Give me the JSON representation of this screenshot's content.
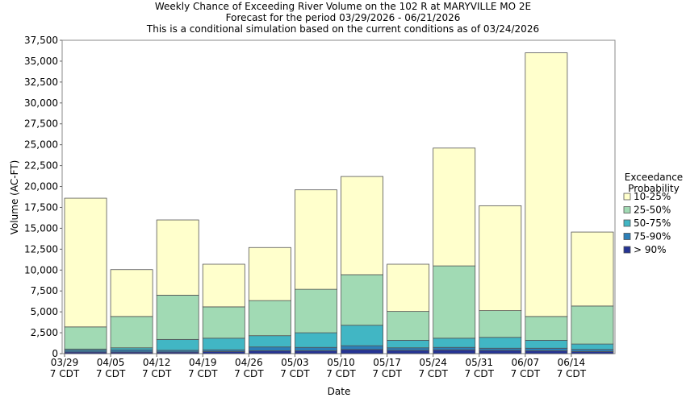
{
  "chart_data": {
    "type": "stacked_bar",
    "title": "Weekly Chance of Exceeding River Volume on the 102 R at MARYVILLE MO 2E",
    "subtitle": "Forecast for the period 03/29/2026 - 06/21/2026",
    "note": "This is a conditional simulation based on the current conditions as of 03/24/2026",
    "x_label": "Date",
    "y_label": "Volume (AC-FT)",
    "legend_title": "Exceedance Probability",
    "legend_position": "right",
    "categories": [
      "03/29 7 CDT",
      "04/05 7 CDT",
      "04/12 7 CDT",
      "04/19 7 CDT",
      "04/26 7 CDT",
      "05/03 7 CDT",
      "05/10 7 CDT",
      "05/17 7 CDT",
      "05/24 7 CDT",
      "05/31 7 CDT",
      "06/07 7 CDT",
      "06/14 7 CDT"
    ],
    "series": [
      {
        "name": "> 90%",
        "color": "#253494",
        "values": [
          200,
          200,
          200,
          250,
          350,
          350,
          500,
          400,
          450,
          400,
          350,
          250
        ]
      },
      {
        "name": "75-90%",
        "color": "#2c7fb8",
        "values": [
          200,
          250,
          200,
          200,
          450,
          400,
          450,
          300,
          300,
          250,
          300,
          250
        ]
      },
      {
        "name": "50-75%",
        "color": "#41b6c4",
        "values": [
          150,
          250,
          1300,
          1400,
          1350,
          1750,
          2450,
          900,
          1100,
          1300,
          950,
          650
        ]
      },
      {
        "name": "25-50%",
        "color": "#a1dab4",
        "values": [
          2650,
          3750,
          5300,
          3750,
          4200,
          5200,
          6050,
          3450,
          8650,
          3200,
          2850,
          4550
        ]
      },
      {
        "name": "10-25%",
        "color": "#ffffcc",
        "values": [
          15400,
          5600,
          9000,
          5100,
          6350,
          11900,
          11750,
          5650,
          14100,
          12550,
          31550,
          8850
        ]
      }
    ],
    "ylim": [
      0,
      37500
    ],
    "yticks": [
      0,
      {
        "value": 2500,
        "label": "2,500"
      },
      {
        "value": 5000,
        "label": "5,000"
      },
      {
        "value": 7500,
        "label": "7,500"
      },
      {
        "value": 10000,
        "label": "10,000"
      },
      {
        "value": 12500,
        "label": "12,500"
      },
      {
        "value": 15000,
        "label": "15,000"
      },
      {
        "value": 17500,
        "label": "17,500"
      },
      {
        "value": 20000,
        "label": "20,000"
      },
      {
        "value": 22500,
        "label": "22,500"
      },
      {
        "value": 25000,
        "label": "25,000"
      },
      {
        "value": 27500,
        "label": "27,500"
      },
      {
        "value": 30000,
        "label": "30,000"
      },
      {
        "value": 32500,
        "label": "32,500"
      },
      {
        "value": 35000,
        "label": "35,000"
      },
      {
        "value": 37500,
        "label": "37,500"
      }
    ]
  }
}
